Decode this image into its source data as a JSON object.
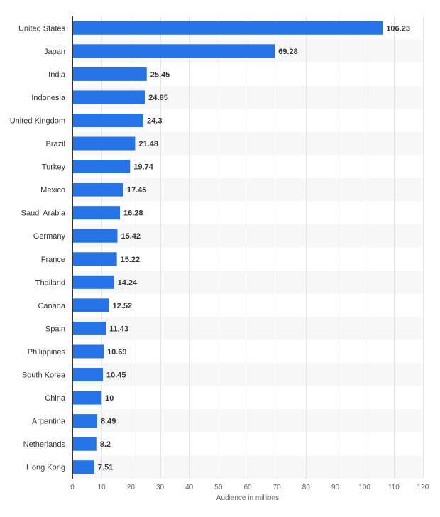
{
  "chart_data": {
    "type": "bar",
    "orientation": "horizontal",
    "categories": [
      "United States",
      "Japan",
      "India",
      "Indonesia",
      "United Kingdom",
      "Brazil",
      "Turkey",
      "Mexico",
      "Saudi Arabia",
      "Germany",
      "France",
      "Thailand",
      "Canada",
      "Spain",
      "Philippines",
      "South Korea",
      "China",
      "Argentina",
      "Netherlands",
      "Hong Kong"
    ],
    "values": [
      106.23,
      69.28,
      25.45,
      24.85,
      24.3,
      21.48,
      19.74,
      17.45,
      16.28,
      15.42,
      15.22,
      14.24,
      12.52,
      11.43,
      10.69,
      10.45,
      10,
      8.49,
      8.2,
      7.51
    ],
    "value_labels": [
      "106.23",
      "69.28",
      "25.45",
      "24.85",
      "24.3",
      "21.48",
      "19.74",
      "17.45",
      "16.28",
      "15.42",
      "15.22",
      "14.24",
      "12.52",
      "11.43",
      "10.69",
      "10.45",
      "10",
      "8.49",
      "8.2",
      "7.51"
    ],
    "xlabel": "Audience in millions",
    "xlim": [
      0,
      120
    ],
    "xticks": [
      0,
      10,
      20,
      30,
      40,
      50,
      60,
      70,
      80,
      90,
      100,
      110,
      120
    ],
    "grid": true,
    "bar_color": "#2673e6",
    "band_color": "#f7f7f7",
    "grid_color": "#e6e6e6"
  }
}
